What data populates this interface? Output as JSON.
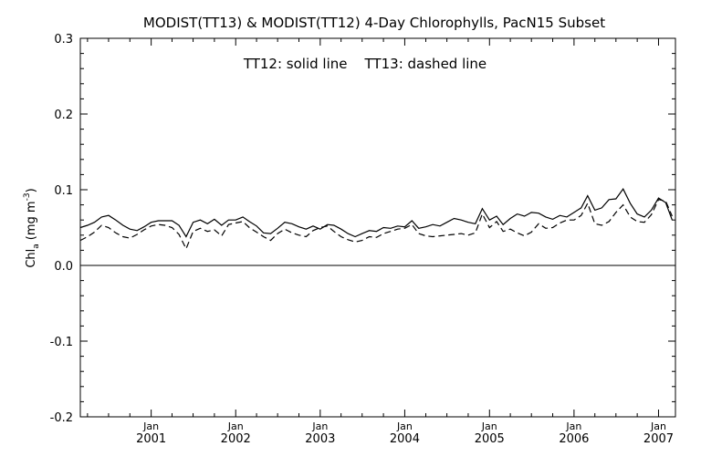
{
  "chart_data": {
    "type": "line",
    "title": "MODIST(TT13) & MODIST(TT12) 4-Day Chlorophylls, PacN15 Subset",
    "annotation": "TT12: solid line    TT13: dashed line",
    "ylabel": "Chl",
    "ylabel_sub": "a",
    "ylabel_units": "(mg m",
    "ylabel_sup": "-3",
    "ylabel_close": ")",
    "ylim": [
      -0.2,
      0.3
    ],
    "yticks": [
      "-0.2",
      "-0.1",
      "0.0",
      "0.1",
      "0.2",
      "0.3"
    ],
    "xlim": [
      "2000-03-01",
      "2007-03-15"
    ],
    "xticks": [
      {
        "month": "Jan",
        "year": "2001",
        "date": "2001-01-01"
      },
      {
        "month": "Jan",
        "year": "2002",
        "date": "2002-01-01"
      },
      {
        "month": "Jan",
        "year": "2003",
        "date": "2003-01-01"
      },
      {
        "month": "Jan",
        "year": "2004",
        "date": "2004-01-01"
      },
      {
        "month": "Jan",
        "year": "2005",
        "date": "2005-01-01"
      },
      {
        "month": "Jan",
        "year": "2006",
        "date": "2006-01-01"
      },
      {
        "month": "Jan",
        "year": "2007",
        "date": "2007-01-01"
      }
    ],
    "zero_line": 0.0,
    "series": [
      {
        "name": "TT12",
        "style": "solid",
        "points": [
          [
            "2000-03-01",
            0.05
          ],
          [
            "2000-04-01",
            0.053
          ],
          [
            "2000-05-01",
            0.057
          ],
          [
            "2000-06-01",
            0.064
          ],
          [
            "2000-07-01",
            0.066
          ],
          [
            "2000-08-01",
            0.06
          ],
          [
            "2000-09-01",
            0.053
          ],
          [
            "2000-10-01",
            0.048
          ],
          [
            "2000-11-01",
            0.046
          ],
          [
            "2000-12-01",
            0.051
          ],
          [
            "2001-01-01",
            0.057
          ],
          [
            "2001-02-01",
            0.059
          ],
          [
            "2001-03-01",
            0.059
          ],
          [
            "2001-04-01",
            0.059
          ],
          [
            "2001-05-01",
            0.053
          ],
          [
            "2001-06-01",
            0.038
          ],
          [
            "2001-07-01",
            0.057
          ],
          [
            "2001-08-01",
            0.06
          ],
          [
            "2001-09-01",
            0.055
          ],
          [
            "2001-10-01",
            0.061
          ],
          [
            "2001-11-01",
            0.053
          ],
          [
            "2001-12-01",
            0.06
          ],
          [
            "2002-01-01",
            0.06
          ],
          [
            "2002-02-01",
            0.064
          ],
          [
            "2002-03-01",
            0.058
          ],
          [
            "2002-04-01",
            0.052
          ],
          [
            "2002-05-01",
            0.043
          ],
          [
            "2002-06-01",
            0.042
          ],
          [
            "2002-07-01",
            0.049
          ],
          [
            "2002-08-01",
            0.057
          ],
          [
            "2002-09-01",
            0.055
          ],
          [
            "2002-10-01",
            0.051
          ],
          [
            "2002-11-01",
            0.048
          ],
          [
            "2002-12-01",
            0.052
          ],
          [
            "2003-01-01",
            0.048
          ],
          [
            "2003-02-01",
            0.054
          ],
          [
            "2003-03-01",
            0.053
          ],
          [
            "2003-04-01",
            0.048
          ],
          [
            "2003-05-01",
            0.042
          ],
          [
            "2003-06-01",
            0.038
          ],
          [
            "2003-07-01",
            0.042
          ],
          [
            "2003-08-01",
            0.046
          ],
          [
            "2003-09-01",
            0.045
          ],
          [
            "2003-10-01",
            0.05
          ],
          [
            "2003-11-01",
            0.049
          ],
          [
            "2003-12-01",
            0.052
          ],
          [
            "2004-01-01",
            0.051
          ],
          [
            "2004-02-01",
            0.059
          ],
          [
            "2004-03-01",
            0.049
          ],
          [
            "2004-04-01",
            0.051
          ],
          [
            "2004-05-01",
            0.054
          ],
          [
            "2004-06-01",
            0.052
          ],
          [
            "2004-07-01",
            0.057
          ],
          [
            "2004-08-01",
            0.062
          ],
          [
            "2004-09-01",
            0.06
          ],
          [
            "2004-10-01",
            0.057
          ],
          [
            "2004-11-01",
            0.055
          ],
          [
            "2004-12-01",
            0.075
          ],
          [
            "2005-01-01",
            0.06
          ],
          [
            "2005-02-01",
            0.065
          ],
          [
            "2005-03-01",
            0.054
          ],
          [
            "2005-04-01",
            0.062
          ],
          [
            "2005-05-01",
            0.068
          ],
          [
            "2005-06-01",
            0.065
          ],
          [
            "2005-07-01",
            0.07
          ],
          [
            "2005-08-01",
            0.069
          ],
          [
            "2005-09-01",
            0.064
          ],
          [
            "2005-10-01",
            0.061
          ],
          [
            "2005-11-01",
            0.066
          ],
          [
            "2005-12-01",
            0.064
          ],
          [
            "2006-01-01",
            0.07
          ],
          [
            "2006-02-01",
            0.076
          ],
          [
            "2006-03-01",
            0.092
          ],
          [
            "2006-04-01",
            0.073
          ],
          [
            "2006-05-01",
            0.076
          ],
          [
            "2006-06-01",
            0.087
          ],
          [
            "2006-07-01",
            0.088
          ],
          [
            "2006-08-01",
            0.101
          ],
          [
            "2006-09-01",
            0.082
          ],
          [
            "2006-10-01",
            0.068
          ],
          [
            "2006-11-01",
            0.064
          ],
          [
            "2006-12-01",
            0.073
          ],
          [
            "2007-01-01",
            0.089
          ],
          [
            "2007-02-01",
            0.083
          ],
          [
            "2007-03-01",
            0.06
          ]
        ]
      },
      {
        "name": "TT13",
        "style": "dashed",
        "points": [
          [
            "2000-03-01",
            0.033
          ],
          [
            "2000-04-01",
            0.038
          ],
          [
            "2000-05-01",
            0.044
          ],
          [
            "2000-06-01",
            0.053
          ],
          [
            "2000-07-01",
            0.05
          ],
          [
            "2000-08-01",
            0.043
          ],
          [
            "2000-09-01",
            0.038
          ],
          [
            "2000-10-01",
            0.036
          ],
          [
            "2000-11-01",
            0.041
          ],
          [
            "2000-12-01",
            0.047
          ],
          [
            "2001-01-01",
            0.052
          ],
          [
            "2001-02-01",
            0.054
          ],
          [
            "2001-03-01",
            0.053
          ],
          [
            "2001-04-01",
            0.05
          ],
          [
            "2001-05-01",
            0.041
          ],
          [
            "2001-06-01",
            0.022
          ],
          [
            "2001-07-01",
            0.045
          ],
          [
            "2001-08-01",
            0.049
          ],
          [
            "2001-09-01",
            0.045
          ],
          [
            "2001-10-01",
            0.047
          ],
          [
            "2001-11-01",
            0.039
          ],
          [
            "2001-12-01",
            0.054
          ],
          [
            "2002-01-01",
            0.056
          ],
          [
            "2002-02-01",
            0.058
          ],
          [
            "2002-03-01",
            0.05
          ],
          [
            "2002-04-01",
            0.044
          ],
          [
            "2002-05-01",
            0.038
          ],
          [
            "2002-06-01",
            0.033
          ],
          [
            "2002-07-01",
            0.042
          ],
          [
            "2002-08-01",
            0.048
          ],
          [
            "2002-09-01",
            0.043
          ],
          [
            "2002-10-01",
            0.04
          ],
          [
            "2002-11-01",
            0.038
          ],
          [
            "2002-12-01",
            0.046
          ],
          [
            "2003-01-01",
            0.05
          ],
          [
            "2003-02-01",
            0.052
          ],
          [
            "2003-03-01",
            0.045
          ],
          [
            "2003-04-01",
            0.038
          ],
          [
            "2003-05-01",
            0.034
          ],
          [
            "2003-06-01",
            0.031
          ],
          [
            "2003-07-01",
            0.033
          ],
          [
            "2003-08-01",
            0.038
          ],
          [
            "2003-09-01",
            0.037
          ],
          [
            "2003-10-01",
            0.042
          ],
          [
            "2003-11-01",
            0.045
          ],
          [
            "2003-12-01",
            0.048
          ],
          [
            "2004-01-01",
            0.049
          ],
          [
            "2004-02-01",
            0.054
          ],
          [
            "2004-03-01",
            0.042
          ],
          [
            "2004-04-01",
            0.039
          ],
          [
            "2004-05-01",
            0.038
          ],
          [
            "2004-06-01",
            0.039
          ],
          [
            "2004-07-01",
            0.04
          ],
          [
            "2004-08-01",
            0.041
          ],
          [
            "2004-09-01",
            0.042
          ],
          [
            "2004-10-01",
            0.04
          ],
          [
            "2004-11-01",
            0.043
          ],
          [
            "2004-12-01",
            0.068
          ],
          [
            "2005-01-01",
            0.05
          ],
          [
            "2005-02-01",
            0.058
          ],
          [
            "2005-03-01",
            0.045
          ],
          [
            "2005-04-01",
            0.048
          ],
          [
            "2005-05-01",
            0.043
          ],
          [
            "2005-06-01",
            0.039
          ],
          [
            "2005-07-01",
            0.044
          ],
          [
            "2005-08-01",
            0.055
          ],
          [
            "2005-09-01",
            0.049
          ],
          [
            "2005-10-01",
            0.05
          ],
          [
            "2005-11-01",
            0.056
          ],
          [
            "2005-12-01",
            0.06
          ],
          [
            "2006-01-01",
            0.06
          ],
          [
            "2006-02-01",
            0.066
          ],
          [
            "2006-03-01",
            0.082
          ],
          [
            "2006-04-01",
            0.055
          ],
          [
            "2006-05-01",
            0.053
          ],
          [
            "2006-06-01",
            0.058
          ],
          [
            "2006-07-01",
            0.07
          ],
          [
            "2006-08-01",
            0.08
          ],
          [
            "2006-09-01",
            0.064
          ],
          [
            "2006-10-01",
            0.058
          ],
          [
            "2006-11-01",
            0.057
          ],
          [
            "2006-12-01",
            0.067
          ],
          [
            "2007-01-01",
            0.087
          ],
          [
            "2007-02-01",
            0.085
          ],
          [
            "2007-03-01",
            0.065
          ]
        ]
      }
    ]
  }
}
